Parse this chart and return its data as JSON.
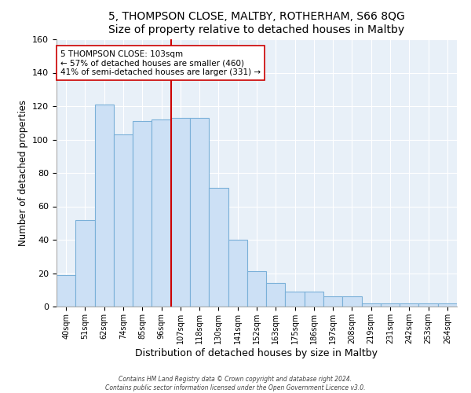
{
  "title": "5, THOMPSON CLOSE, MALTBY, ROTHERHAM, S66 8QG",
  "subtitle": "Size of property relative to detached houses in Maltby",
  "xlabel": "Distribution of detached houses by size in Maltby",
  "ylabel": "Number of detached properties",
  "bar_labels": [
    "40sqm",
    "51sqm",
    "62sqm",
    "74sqm",
    "85sqm",
    "96sqm",
    "107sqm",
    "118sqm",
    "130sqm",
    "141sqm",
    "152sqm",
    "163sqm",
    "175sqm",
    "186sqm",
    "197sqm",
    "208sqm",
    "219sqm",
    "231sqm",
    "242sqm",
    "253sqm",
    "264sqm"
  ],
  "bar_values": [
    19,
    52,
    121,
    103,
    111,
    112,
    113,
    113,
    71,
    40,
    21,
    14,
    9,
    9,
    6,
    6,
    2,
    2,
    2,
    2,
    2
  ],
  "bar_color": "#cce0f5",
  "bar_edge_color": "#7ab0d8",
  "reference_line_x_label": "107sqm",
  "reference_line_color": "#cc0000",
  "ylim": [
    0,
    160
  ],
  "annotation_text": "5 THOMPSON CLOSE: 103sqm\n← 57% of detached houses are smaller (460)\n41% of semi-detached houses are larger (331) →",
  "annotation_box_color": "#ffffff",
  "annotation_box_edge_color": "#cc0000",
  "footer_line1": "Contains HM Land Registry data © Crown copyright and database right 2024.",
  "footer_line2": "Contains public sector information licensed under the Open Government Licence v3.0.",
  "background_color": "#ffffff",
  "plot_bg_color": "#e8f0f8",
  "grid_color": "#ffffff"
}
